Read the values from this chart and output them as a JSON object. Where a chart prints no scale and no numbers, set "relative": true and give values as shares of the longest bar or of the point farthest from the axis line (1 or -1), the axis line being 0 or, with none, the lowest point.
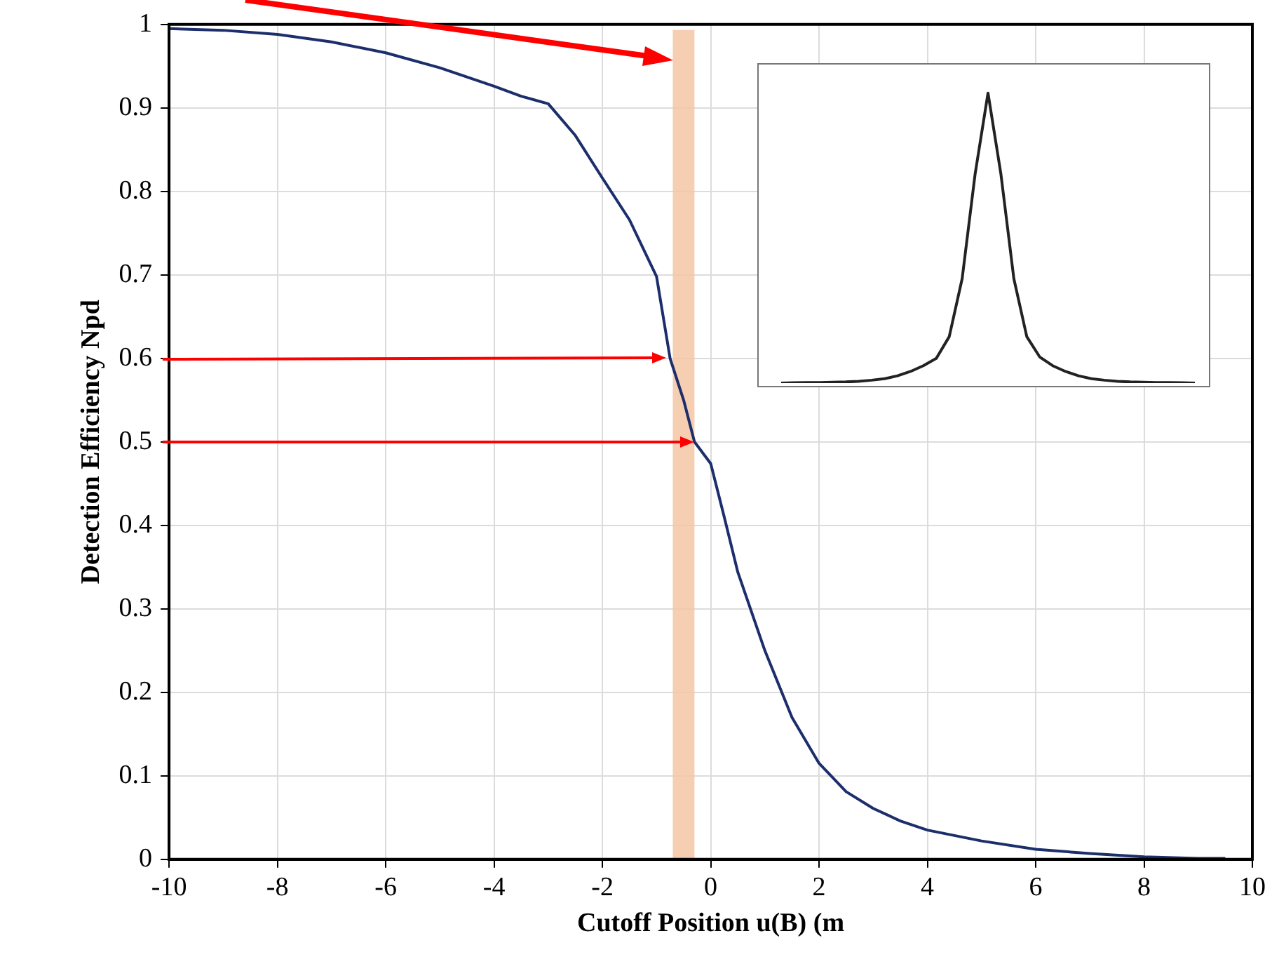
{
  "chart_data": [
    {
      "type": "line",
      "xlabel": "Cutoff Position u(B) (m",
      "ylabel": "Detection Efficiency Npd",
      "x": [
        -10,
        -9,
        -8,
        -7,
        -6,
        -5,
        -4,
        -3.5,
        -3,
        -2.5,
        -2,
        -1.5,
        -1,
        -0.75,
        -0.5,
        -0.3,
        0,
        0.25,
        0.5,
        1,
        1.5,
        2,
        2.5,
        3,
        3.5,
        4,
        5,
        6,
        7,
        8,
        9,
        9.5
      ],
      "series": [
        {
          "color": "#1c2e6b",
          "values": [
            0.995,
            0.993,
            0.988,
            0.979,
            0.966,
            0.948,
            0.926,
            0.914,
            0.905,
            0.867,
            0.816,
            0.766,
            0.698,
            0.6,
            0.55,
            0.5,
            0.474,
            0.41,
            0.344,
            0.25,
            0.17,
            0.115,
            0.081,
            0.061,
            0.046,
            0.035,
            0.022,
            0.012,
            0.007,
            0.003,
            0.001,
            0.001
          ]
        }
      ],
      "xlim": [
        -10,
        10
      ],
      "ylim": [
        0,
        1
      ],
      "xticks": [
        -10,
        -8,
        -6,
        -4,
        -2,
        0,
        2,
        4,
        6,
        8,
        10
      ],
      "yticks": [
        0,
        0.1,
        0.2,
        0.3,
        0.4,
        0.5,
        0.6,
        0.7,
        0.8,
        0.9,
        1
      ],
      "grid": true,
      "marker": "none",
      "bands": [
        {
          "axis": "x",
          "from": -0.7,
          "to": -0.3,
          "color": "#f5c6a5"
        }
      ]
    },
    {
      "type": "line",
      "relative": true,
      "marker": "none",
      "categories": [
        null,
        null,
        null,
        null,
        null,
        null,
        null,
        null,
        null,
        null,
        null,
        null,
        null,
        null,
        null,
        null,
        null,
        null,
        null,
        null,
        null,
        null,
        null,
        null,
        null,
        null,
        null,
        null,
        null,
        null,
        null,
        null,
        null
      ],
      "series": [
        {
          "color": "#222222",
          "values": [
            0,
            0.001,
            0.002,
            0.002,
            0.003,
            0.004,
            0.006,
            0.01,
            0.015,
            0.025,
            0.04,
            0.06,
            0.085,
            0.16,
            0.36,
            0.72,
            1,
            0.72,
            0.36,
            0.16,
            0.09,
            0.06,
            0.04,
            0.025,
            0.015,
            0.01,
            0.006,
            0.004,
            0.003,
            0.002,
            0.002,
            0.001,
            0
          ]
        }
      ]
    }
  ]
}
